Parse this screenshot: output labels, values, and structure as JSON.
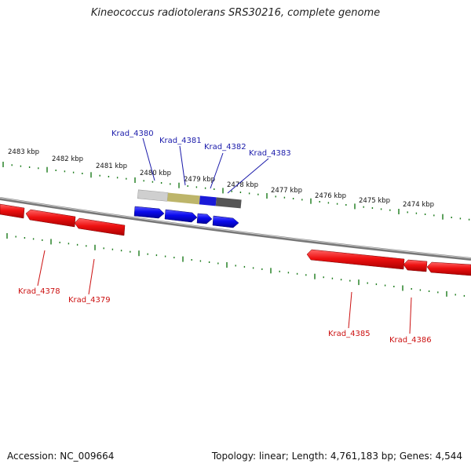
{
  "title": "Kineococcus radiotolerans SRS30216, complete genome",
  "footer": {
    "accession": "Accession: NC_009664",
    "summary": "Topology: linear; Length: 4,761,183 bp; Genes: 4,544"
  },
  "colors": {
    "forward_gene": "#0a0aee",
    "reverse_gene": "#ee1111",
    "tick": "#1a7a1a",
    "backbone": "#888888",
    "forward_label": "#1a1aaa",
    "reverse_label": "#cc1111"
  },
  "ruler_labels": [
    "2483 kbp",
    "2482 kbp",
    "2481 kbp",
    "2480 kbp",
    "2479 kbp",
    "2478 kbp",
    "2477 kbp",
    "2476 kbp",
    "2475 kbp",
    "2474 kbp"
  ],
  "forward_genes": [
    "Krad_4380",
    "Krad_4381",
    "Krad_4382",
    "Krad_4383"
  ],
  "reverse_genes": [
    "Krad_4378",
    "Krad_4379",
    "Krad_4385",
    "Krad_4386"
  ]
}
